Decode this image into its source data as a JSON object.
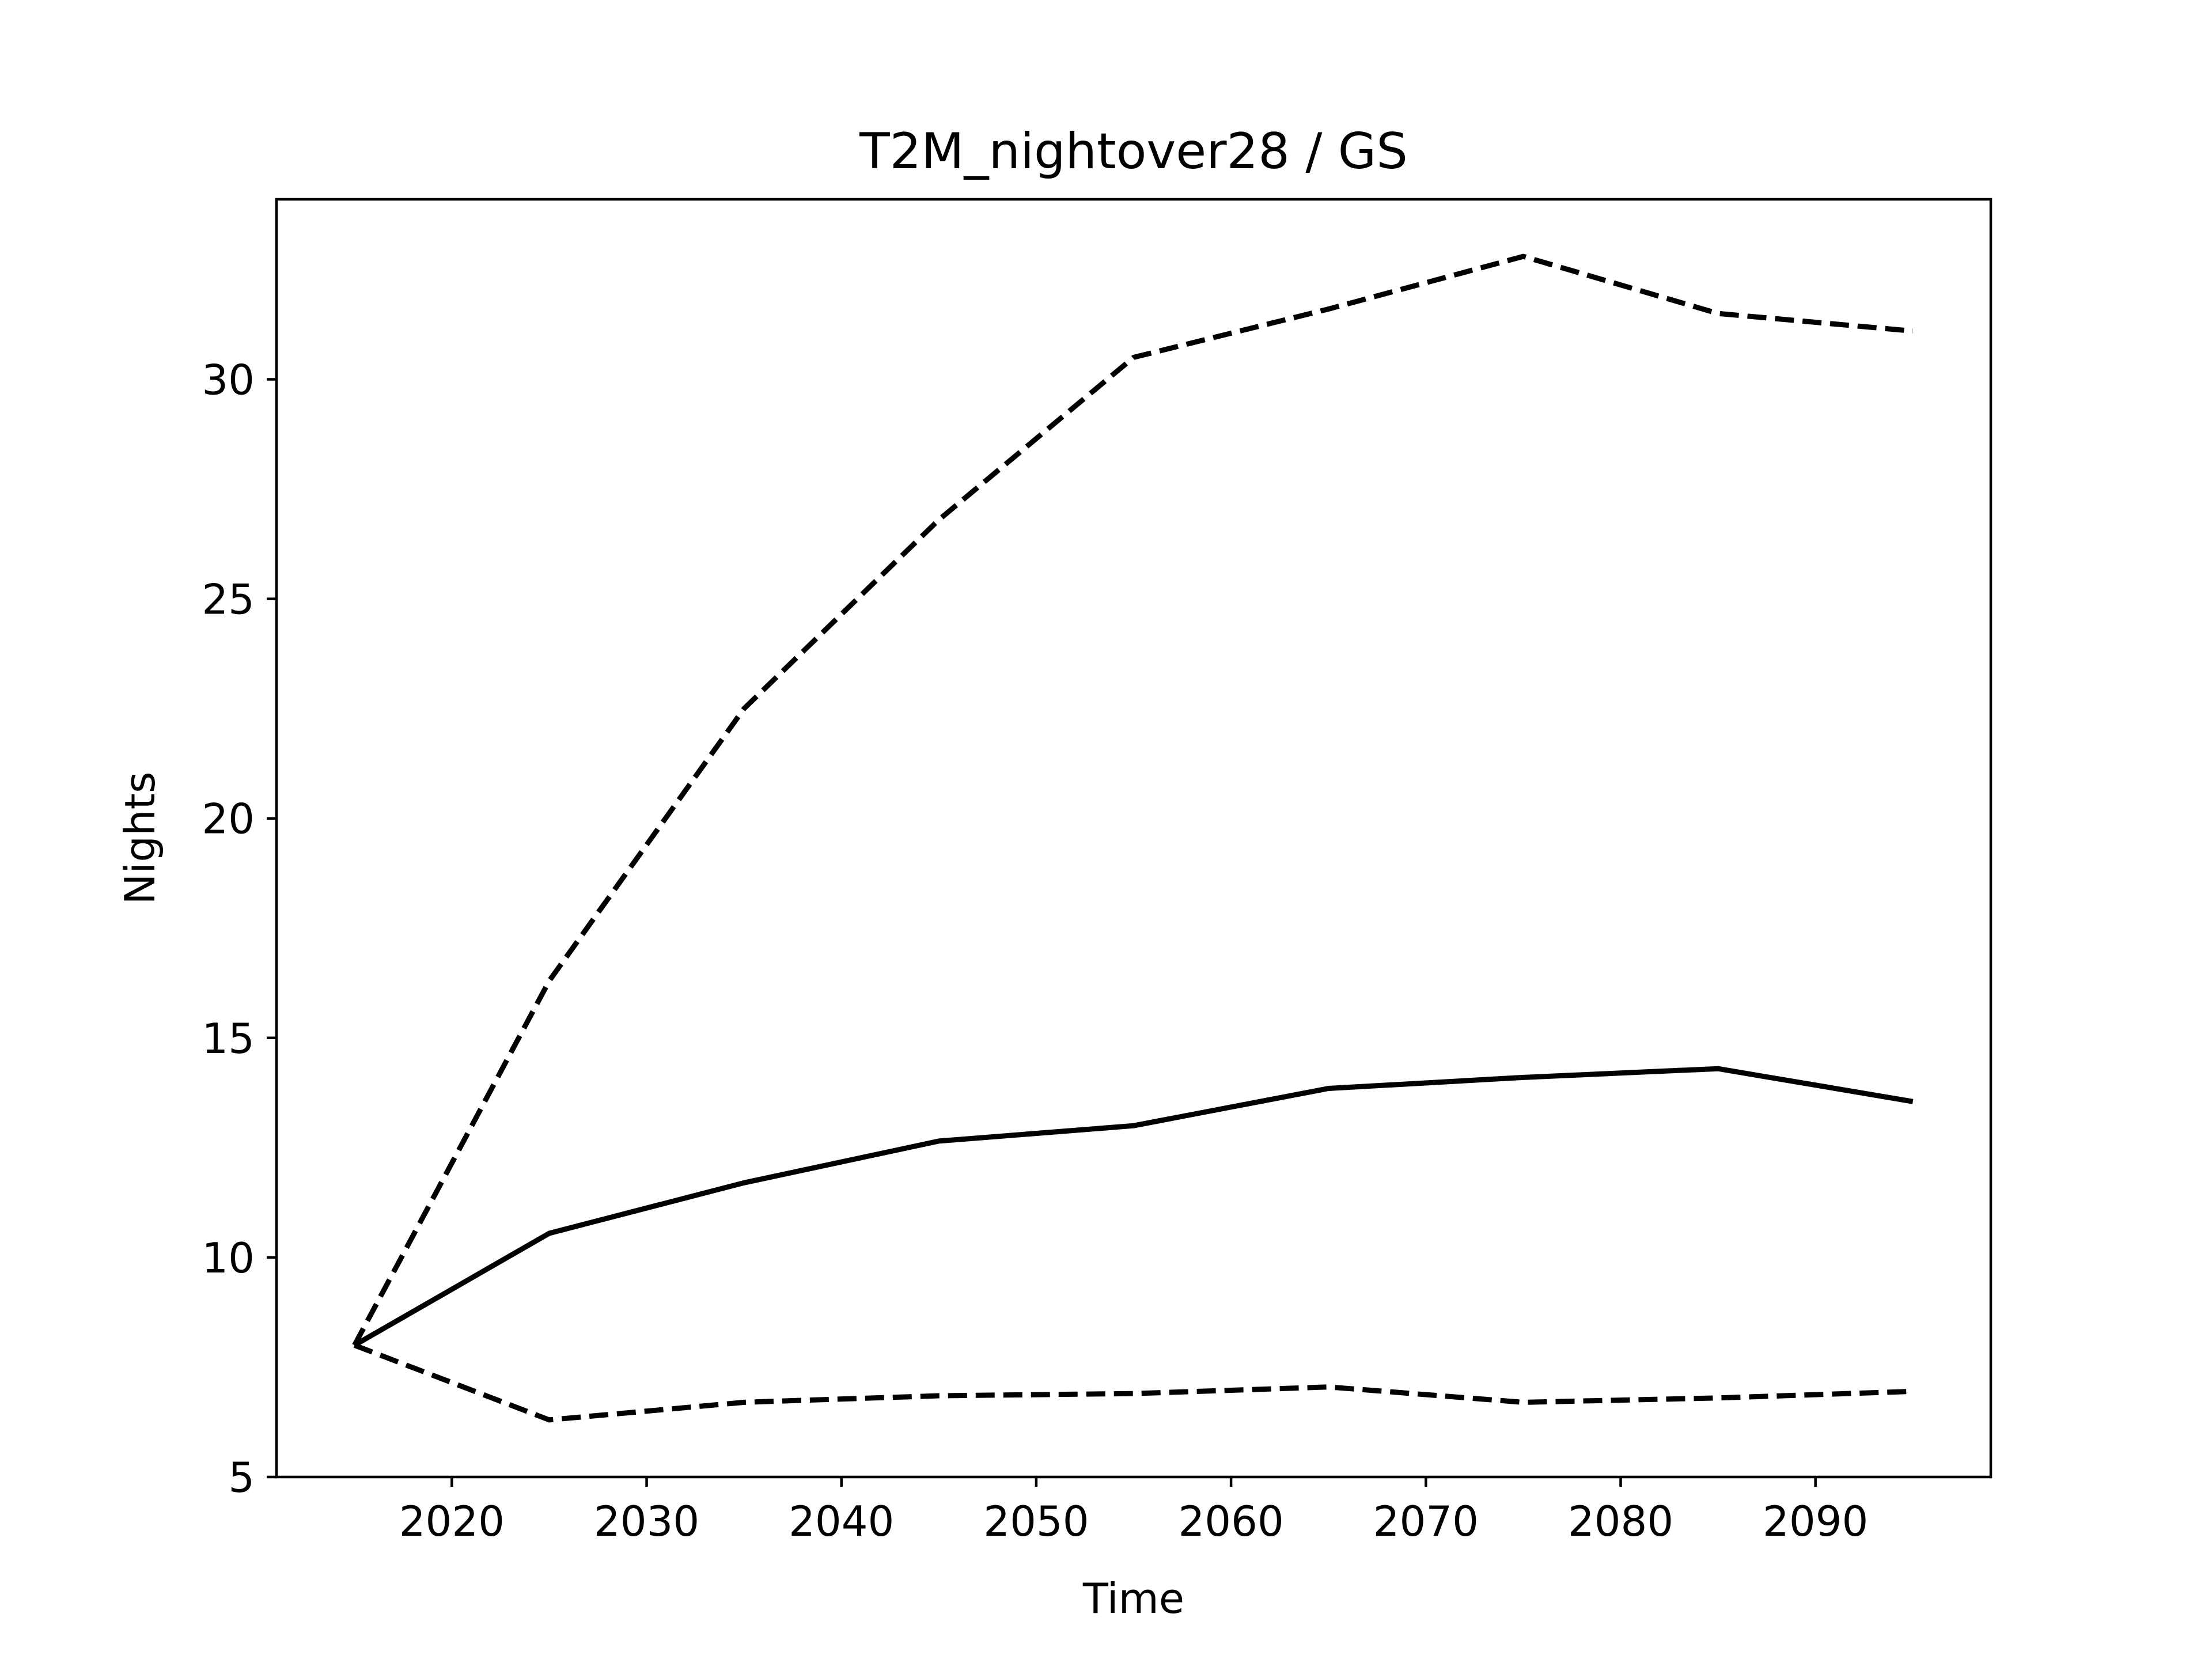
{
  "chart_data": {
    "type": "line",
    "title": "T2M_nightover28 / GS",
    "xlabel": "Time",
    "ylabel": "Nights",
    "xlim": [
      2011,
      2099
    ],
    "ylim": [
      5,
      34.1
    ],
    "xticks": [
      2020,
      2030,
      2040,
      2050,
      2060,
      2070,
      2080,
      2090
    ],
    "yticks": [
      5,
      10,
      15,
      20,
      25,
      30
    ],
    "grid": false,
    "legend": "none",
    "x": [
      2015,
      2025,
      2035,
      2045,
      2055,
      2065,
      2075,
      2085,
      2095
    ],
    "series": [
      {
        "style": "dashed",
        "color": "#000000",
        "values": [
          8.0,
          16.3,
          22.5,
          26.8,
          30.5,
          31.6,
          32.8,
          31.5,
          31.1
        ]
      },
      {
        "style": "solid",
        "color": "#000000",
        "values": [
          8.0,
          10.55,
          11.7,
          12.65,
          13.0,
          13.85,
          14.1,
          14.3,
          13.55
        ]
      },
      {
        "style": "dashed",
        "color": "#000000",
        "values": [
          8.0,
          6.3,
          6.7,
          6.85,
          6.9,
          7.05,
          6.7,
          6.8,
          6.95
        ]
      }
    ]
  }
}
